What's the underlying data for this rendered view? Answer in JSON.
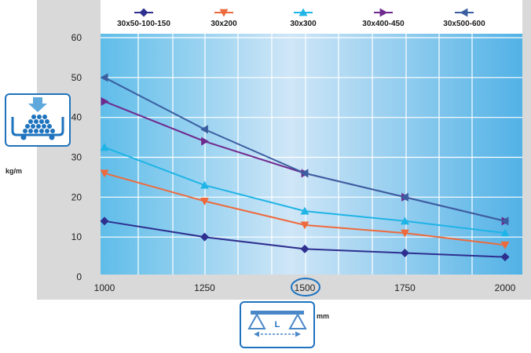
{
  "chart_data": {
    "type": "line",
    "x": [
      1000,
      1250,
      1500,
      1750,
      2000
    ],
    "xlim": [
      1000,
      2000
    ],
    "ylim": [
      0,
      60
    ],
    "x_ticks": [
      "1000",
      "1250",
      "1500",
      "1750",
      "2000"
    ],
    "y_ticks": [
      "0",
      "10",
      "20",
      "30",
      "40",
      "50",
      "60"
    ],
    "xlabel": "mm",
    "ylabel": "kg/m",
    "legend_position": "top",
    "grid": true,
    "highlighted_x_tick": "1500",
    "series": [
      {
        "name": "30x50-100-150",
        "color": "#2e2f8f",
        "marker": "diamond",
        "values": [
          14,
          10,
          7,
          6,
          5
        ]
      },
      {
        "name": "30x200",
        "color": "#ee6a3c",
        "marker": "triangle-down",
        "values": [
          26,
          19,
          13,
          11,
          8
        ]
      },
      {
        "name": "30x300",
        "color": "#1fb4e6",
        "marker": "triangle-up",
        "values": [
          32.5,
          23,
          16.5,
          14,
          11
        ]
      },
      {
        "name": "30x400-450",
        "color": "#6f2a8e",
        "marker": "triangle-right",
        "values": [
          44,
          34,
          26,
          20,
          14
        ]
      },
      {
        "name": "30x500-600",
        "color": "#3a5ea0",
        "marker": "triangle-left",
        "values": [
          50,
          37,
          26,
          20,
          14
        ]
      }
    ]
  },
  "icons": {
    "load": "load-on-beam-icon",
    "span": "span-length-L-icon",
    "span_label": "L"
  }
}
